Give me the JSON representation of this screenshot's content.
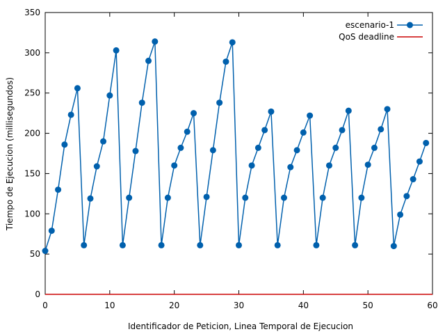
{
  "chart_data": {
    "type": "line",
    "xlabel": "Identificador de Peticion, Linea Temporal de Ejecucion",
    "ylabel": "Tiempo de Ejecucion (millisegundos)",
    "xlim": [
      0,
      60
    ],
    "ylim": [
      0,
      350
    ],
    "xticks": [
      0,
      10,
      20,
      30,
      40,
      50,
      60
    ],
    "yticks": [
      0,
      50,
      100,
      150,
      200,
      250,
      300,
      350
    ],
    "grid": false,
    "legend_position": "top-right",
    "series": [
      {
        "name": "escenario-1",
        "color": "#0060ad",
        "marker": "circle",
        "x": [
          0,
          1,
          2,
          3,
          4,
          5,
          6,
          7,
          8,
          9,
          10,
          11,
          12,
          13,
          14,
          15,
          16,
          17,
          18,
          19,
          20,
          21,
          22,
          23,
          24,
          25,
          26,
          27,
          28,
          29,
          30,
          31,
          32,
          33,
          34,
          35,
          36,
          37,
          38,
          39,
          40,
          41,
          42,
          43,
          44,
          45,
          46,
          47,
          48,
          49,
          50,
          51,
          52,
          53,
          54,
          55,
          56,
          57,
          58,
          59
        ],
        "y": [
          54,
          79,
          130,
          186,
          223,
          256,
          61,
          119,
          159,
          190,
          247,
          303,
          61,
          120,
          178,
          238,
          290,
          314,
          61,
          120,
          160,
          182,
          202,
          225,
          61,
          121,
          179,
          238,
          289,
          313,
          61,
          120,
          160,
          182,
          204,
          227,
          61,
          120,
          158,
          179,
          201,
          222,
          61,
          120,
          160,
          182,
          204,
          228,
          61,
          120,
          161,
          182,
          205,
          230,
          60,
          99,
          122,
          143,
          165,
          188
        ]
      },
      {
        "name": "QoS deadline",
        "color": "#cc0000",
        "marker": "none",
        "x": [
          0,
          60
        ],
        "y": [
          0,
          0
        ]
      }
    ]
  }
}
